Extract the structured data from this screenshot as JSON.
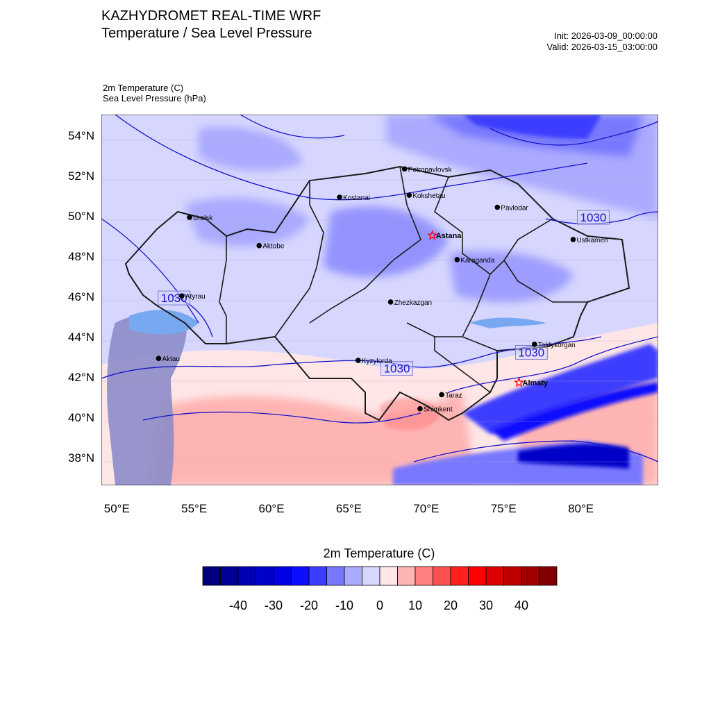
{
  "header": {
    "title_line1": "KAZHYDROMET REAL-TIME WRF",
    "title_line2": "Temperature / Sea Level Pressure",
    "init": "Init: 2026-03-09_00:00:00",
    "valid": "Valid: 2026-03-15_03:00:00"
  },
  "variables": {
    "temp_label": "2m Temperature   (C)",
    "slp_label": "Sea Level Pressure   (hPa)"
  },
  "map": {
    "lon_range": [
      49,
      85
    ],
    "lat_range": [
      36.7,
      55.1
    ],
    "lat_ticks": [
      {
        "value": 54,
        "label": "54°N"
      },
      {
        "value": 52,
        "label": "52°N"
      },
      {
        "value": 50,
        "label": "50°N"
      },
      {
        "value": 48,
        "label": "48°N"
      },
      {
        "value": 46,
        "label": "46°N"
      },
      {
        "value": 44,
        "label": "44°N"
      },
      {
        "value": 42,
        "label": "42°N"
      },
      {
        "value": 40,
        "label": "40°N"
      },
      {
        "value": 38,
        "label": "38°N"
      }
    ],
    "lon_ticks": [
      {
        "value": 50,
        "label": "50°E"
      },
      {
        "value": 55,
        "label": "55°E"
      },
      {
        "value": 60,
        "label": "60°E"
      },
      {
        "value": 65,
        "label": "65°E"
      },
      {
        "value": 70,
        "label": "70°E"
      },
      {
        "value": 75,
        "label": "75°E"
      },
      {
        "value": 80,
        "label": "80°E"
      }
    ],
    "cities": [
      {
        "name": "Petropavlovsk",
        "lon": 68.6,
        "lat": 52.4,
        "marker": "dot",
        "bold": false
      },
      {
        "name": "Kostanai",
        "lon": 64.4,
        "lat": 51.0,
        "marker": "dot",
        "bold": false
      },
      {
        "name": "Kokshetau",
        "lon": 68.9,
        "lat": 51.1,
        "marker": "dot",
        "bold": false
      },
      {
        "name": "Pavlodar",
        "lon": 74.6,
        "lat": 50.5,
        "marker": "dot",
        "bold": false
      },
      {
        "name": "Uralsk",
        "lon": 54.7,
        "lat": 50.0,
        "marker": "dot",
        "bold": false
      },
      {
        "name": "Astana",
        "lon": 70.4,
        "lat": 49.1,
        "marker": "star",
        "bold": true
      },
      {
        "name": "Ustkamen",
        "lon": 79.5,
        "lat": 48.9,
        "marker": "dot",
        "bold": false
      },
      {
        "name": "Aktobe",
        "lon": 59.2,
        "lat": 48.6,
        "marker": "dot",
        "bold": false
      },
      {
        "name": "Karaganda",
        "lon": 72.0,
        "lat": 47.9,
        "marker": "dot",
        "bold": false
      },
      {
        "name": "Atyrau",
        "lon": 54.2,
        "lat": 46.1,
        "marker": "dot",
        "bold": false
      },
      {
        "name": "Zhezkazgan",
        "lon": 67.7,
        "lat": 45.8,
        "marker": "dot",
        "bold": false
      },
      {
        "name": "Taldykorgan",
        "lon": 77.0,
        "lat": 43.7,
        "marker": "dot",
        "bold": false
      },
      {
        "name": "Aktau",
        "lon": 52.7,
        "lat": 43.0,
        "marker": "dot",
        "bold": false
      },
      {
        "name": "Kyzylorda",
        "lon": 65.6,
        "lat": 42.9,
        "marker": "dot",
        "bold": false
      },
      {
        "name": "Almaty",
        "lon": 76.0,
        "lat": 41.8,
        "marker": "star",
        "bold": true
      },
      {
        "name": "Taraz",
        "lon": 71.0,
        "lat": 41.2,
        "marker": "dot",
        "bold": false
      },
      {
        "name": "Shimkent",
        "lon": 69.6,
        "lat": 40.5,
        "marker": "dot",
        "bold": false
      }
    ],
    "isobar_labels": [
      {
        "text": "1030",
        "lon": 80.8,
        "lat": 50.0
      },
      {
        "text": "1030",
        "lon": 53.7,
        "lat": 46.0
      },
      {
        "text": "1030",
        "lon": 76.8,
        "lat": 43.3
      },
      {
        "text": "1030",
        "lon": 68.1,
        "lat": 42.5
      }
    ]
  },
  "colorbar": {
    "title": "2m Temperature  (C)",
    "colors": [
      "#00007f",
      "#000096",
      "#0000b4",
      "#0000c8",
      "#0000e6",
      "#0d0dff",
      "#3c3cff",
      "#7878ff",
      "#aaaaff",
      "#d6d6ff",
      "#ffe6e6",
      "#ffb4b4",
      "#ff8080",
      "#ff5050",
      "#ff2020",
      "#ff0000",
      "#dc0000",
      "#be0000",
      "#a00000",
      "#800000"
    ],
    "labels": [
      "-40",
      "-30",
      "-20",
      "-10",
      "0",
      "10",
      "20",
      "30",
      "40"
    ]
  }
}
